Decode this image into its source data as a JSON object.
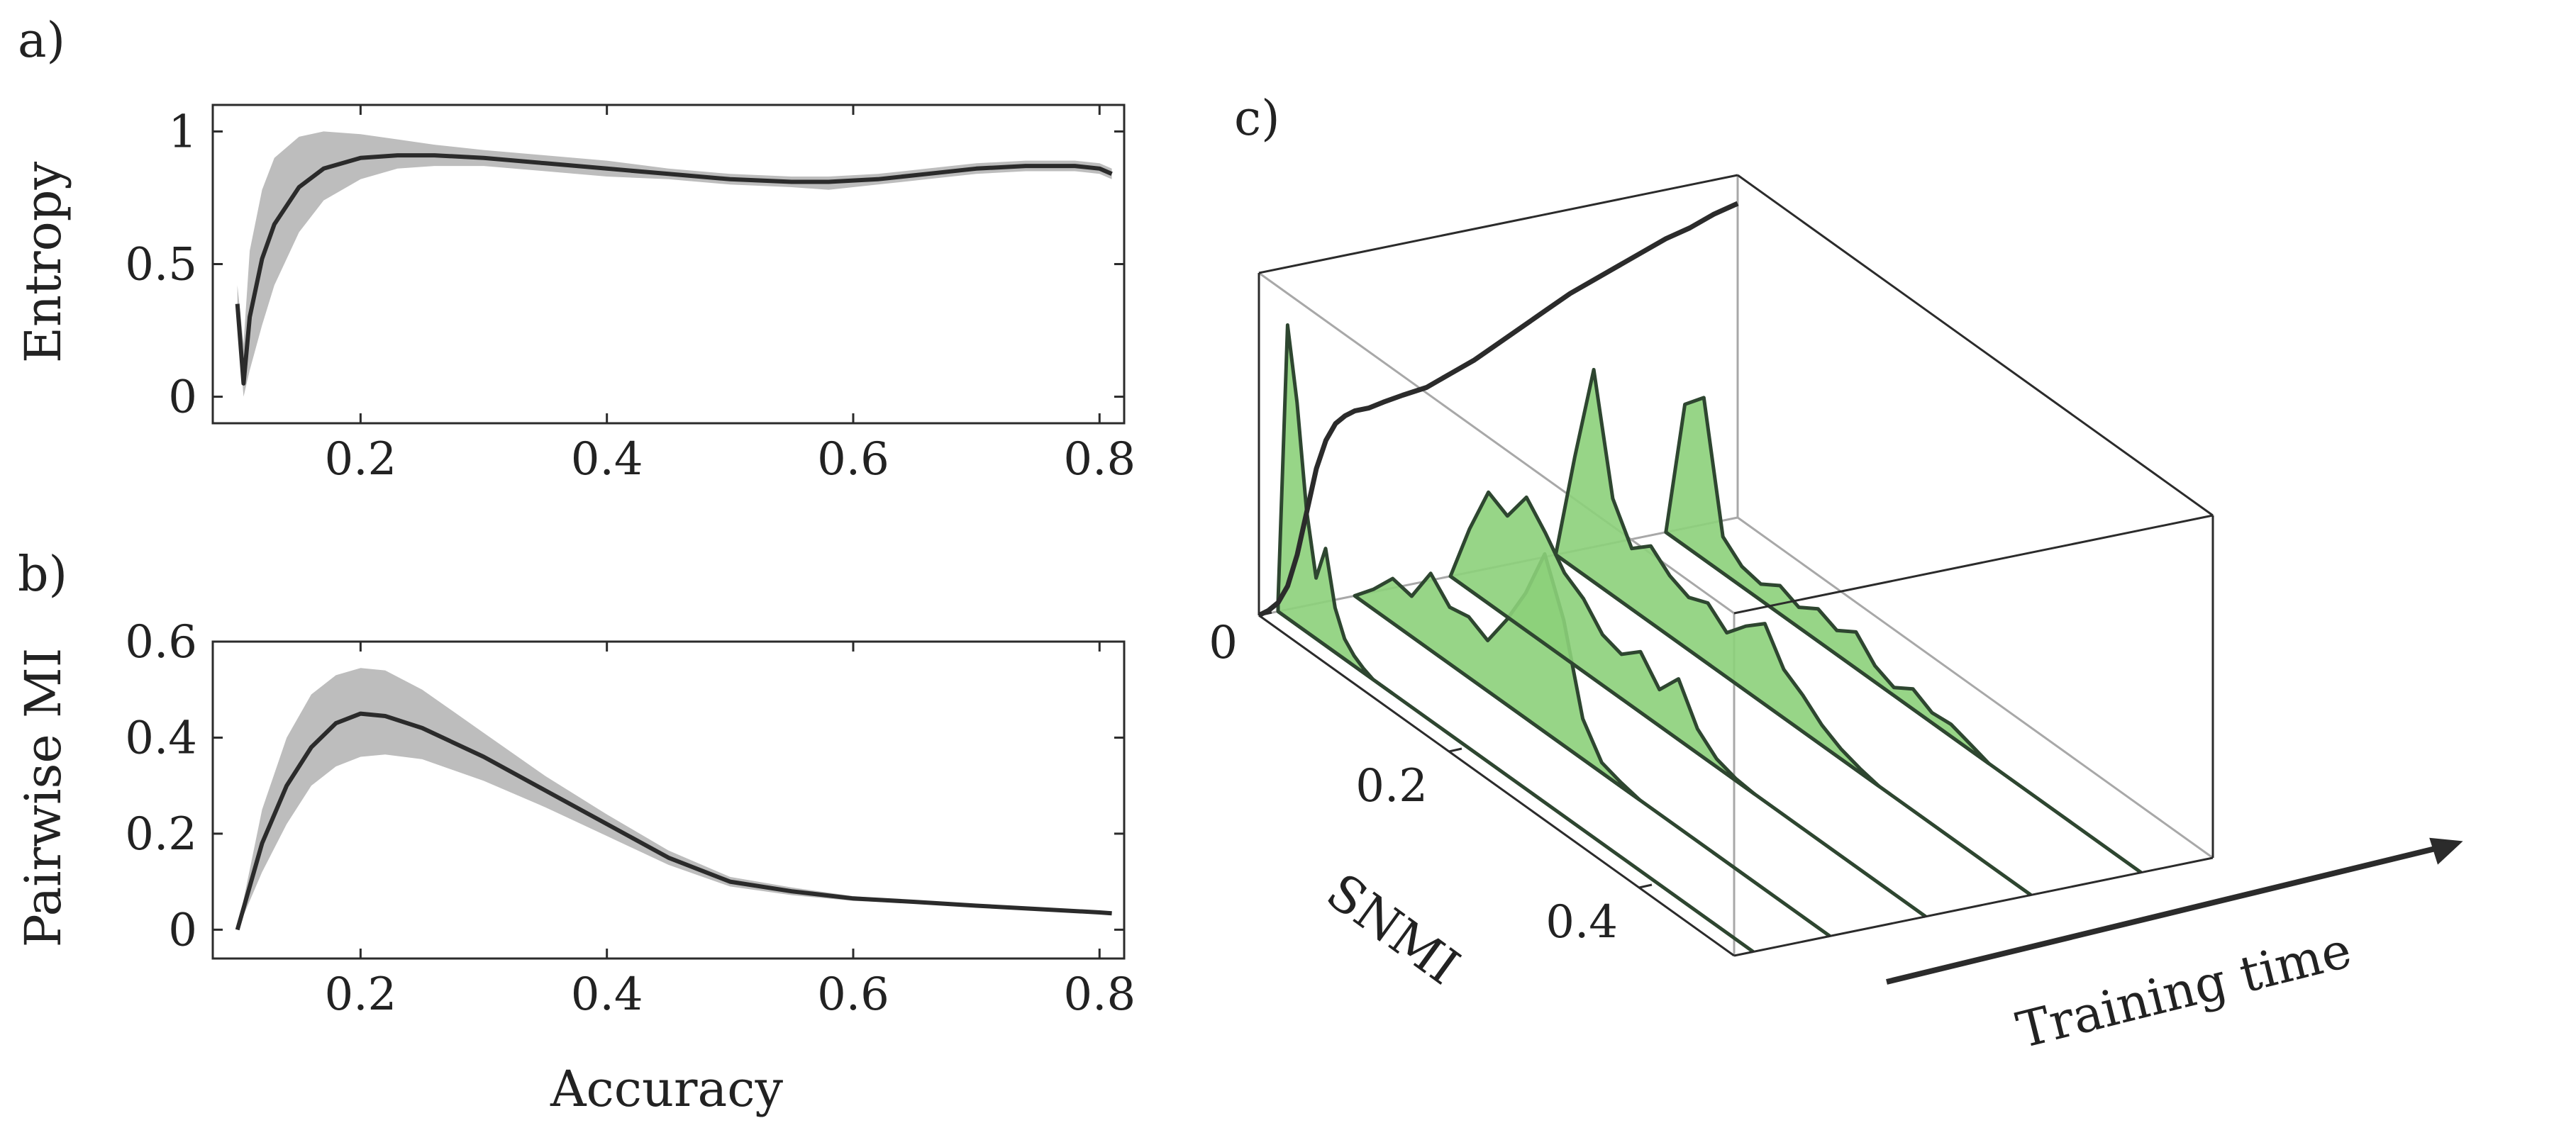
{
  "colors": {
    "line": "#2b2b2b",
    "band": "#bdbdbd",
    "fill": "#8cd07a",
    "fill_edge": "#2e4630",
    "axis": "#2b2b2b",
    "grid3d": "#a8a8a8"
  },
  "chart_data": [
    {
      "panel": "a)",
      "type": "line",
      "title": "",
      "xlabel": "",
      "ylabel": "Entropy",
      "xlim": [
        0.08,
        0.82
      ],
      "ylim": [
        -0.1,
        1.1
      ],
      "xticks": [
        "0.2",
        "0.4",
        "0.6",
        "0.8"
      ],
      "yticks": [
        "0",
        "0.5",
        "1"
      ],
      "grid": false,
      "series": [
        {
          "x": [
            0.1,
            0.105,
            0.11,
            0.12,
            0.13,
            0.15,
            0.17,
            0.2,
            0.23,
            0.26,
            0.3,
            0.35,
            0.4,
            0.45,
            0.5,
            0.55,
            0.58,
            0.62,
            0.66,
            0.7,
            0.74,
            0.78,
            0.8,
            0.81
          ],
          "y": [
            0.35,
            0.05,
            0.3,
            0.52,
            0.65,
            0.79,
            0.86,
            0.9,
            0.91,
            0.91,
            0.9,
            0.88,
            0.86,
            0.84,
            0.82,
            0.81,
            0.81,
            0.82,
            0.84,
            0.86,
            0.87,
            0.87,
            0.86,
            0.84
          ],
          "y_upper": [
            0.42,
            0.2,
            0.55,
            0.78,
            0.9,
            0.98,
            1.0,
            0.99,
            0.97,
            0.95,
            0.93,
            0.91,
            0.89,
            0.86,
            0.84,
            0.83,
            0.83,
            0.84,
            0.86,
            0.88,
            0.89,
            0.89,
            0.88,
            0.86
          ],
          "y_lower": [
            0.28,
            0.0,
            0.1,
            0.27,
            0.42,
            0.62,
            0.74,
            0.82,
            0.86,
            0.87,
            0.87,
            0.85,
            0.83,
            0.82,
            0.8,
            0.79,
            0.78,
            0.8,
            0.82,
            0.84,
            0.85,
            0.85,
            0.84,
            0.82
          ]
        }
      ]
    },
    {
      "panel": "b)",
      "type": "line",
      "title": "",
      "xlabel": "Accuracy",
      "ylabel": "Pairwise MI",
      "xlim": [
        0.08,
        0.82
      ],
      "ylim": [
        -0.06,
        0.6
      ],
      "xticks": [
        "0.2",
        "0.4",
        "0.6",
        "0.8"
      ],
      "yticks": [
        "0",
        "0.2",
        "0.4",
        "0.6"
      ],
      "grid": false,
      "series": [
        {
          "x": [
            0.1,
            0.12,
            0.14,
            0.16,
            0.18,
            0.2,
            0.22,
            0.25,
            0.3,
            0.35,
            0.4,
            0.45,
            0.5,
            0.55,
            0.6,
            0.65,
            0.7,
            0.75,
            0.8,
            0.81
          ],
          "y": [
            0.0,
            0.18,
            0.3,
            0.38,
            0.43,
            0.45,
            0.445,
            0.42,
            0.36,
            0.29,
            0.22,
            0.15,
            0.1,
            0.08,
            0.065,
            0.058,
            0.05,
            0.043,
            0.036,
            0.034
          ],
          "y_upper": [
            0.0,
            0.25,
            0.4,
            0.49,
            0.53,
            0.545,
            0.54,
            0.5,
            0.41,
            0.32,
            0.24,
            0.165,
            0.11,
            0.088,
            0.07,
            0.06,
            0.052,
            0.045,
            0.037,
            0.035
          ],
          "y_lower": [
            0.0,
            0.12,
            0.22,
            0.3,
            0.34,
            0.36,
            0.365,
            0.355,
            0.31,
            0.255,
            0.195,
            0.135,
            0.09,
            0.072,
            0.06,
            0.055,
            0.048,
            0.041,
            0.035,
            0.033
          ]
        }
      ]
    },
    {
      "panel": "c)",
      "type": "area",
      "title": "",
      "depth_label": "SNMI",
      "time_label": "Training time",
      "depth_ticks": [
        "0",
        "0.2",
        "0.4"
      ],
      "depth_lim": [
        0,
        0.5
      ],
      "grid": false,
      "trend_series": {
        "depth": 0.0,
        "t": [
          0.0,
          0.02,
          0.04,
          0.06,
          0.08,
          0.1,
          0.12,
          0.14,
          0.16,
          0.18,
          0.2,
          0.23,
          0.26,
          0.3,
          0.35,
          0.4,
          0.45,
          0.5,
          0.55,
          0.6,
          0.65,
          0.7,
          0.75,
          0.8,
          0.85,
          0.9,
          0.95,
          1.0
        ],
        "y": [
          0.0,
          0.01,
          0.03,
          0.08,
          0.18,
          0.32,
          0.46,
          0.55,
          0.6,
          0.62,
          0.63,
          0.63,
          0.64,
          0.65,
          0.66,
          0.69,
          0.72,
          0.76,
          0.8,
          0.84,
          0.88,
          0.91,
          0.94,
          0.97,
          1.0,
          1.02,
          1.05,
          1.07
        ]
      },
      "distributions": [
        {
          "t": 0.04,
          "depth": [
            0.0,
            0.01,
            0.02,
            0.03,
            0.04,
            0.05,
            0.06,
            0.07,
            0.08,
            0.09,
            0.1,
            0.11,
            0.12
          ],
          "density": [
            0.05,
            1.45,
            1.1,
            0.6,
            0.3,
            0.48,
            0.22,
            0.1,
            0.05,
            0.02,
            0.0,
            0.0,
            0.0
          ]
        },
        {
          "t": 0.2,
          "depth": [
            0.0,
            0.02,
            0.04,
            0.06,
            0.08,
            0.1,
            0.12,
            0.14,
            0.16,
            0.18,
            0.2,
            0.22,
            0.24,
            0.26,
            0.28,
            0.3
          ],
          "density": [
            0.0,
            0.1,
            0.22,
            0.2,
            0.38,
            0.28,
            0.3,
            0.25,
            0.42,
            0.62,
            0.88,
            0.62,
            0.2,
            0.05,
            0.02,
            0.0
          ]
        },
        {
          "t": 0.4,
          "depth": [
            0.0,
            0.02,
            0.04,
            0.06,
            0.08,
            0.1,
            0.12,
            0.14,
            0.16,
            0.18,
            0.2,
            0.22,
            0.24,
            0.26,
            0.28,
            0.3,
            0.32
          ],
          "density": [
            0.0,
            0.3,
            0.55,
            0.5,
            0.66,
            0.55,
            0.42,
            0.36,
            0.25,
            0.22,
            0.3,
            0.18,
            0.3,
            0.12,
            0.04,
            0.01,
            0.0
          ]
        },
        {
          "t": 0.62,
          "depth": [
            0.0,
            0.02,
            0.04,
            0.06,
            0.08,
            0.1,
            0.12,
            0.14,
            0.16,
            0.18,
            0.2,
            0.22,
            0.24,
            0.26,
            0.28,
            0.3,
            0.32,
            0.34
          ],
          "density": [
            0.0,
            0.55,
            1.05,
            0.48,
            0.3,
            0.38,
            0.3,
            0.26,
            0.3,
            0.22,
            0.32,
            0.4,
            0.24,
            0.18,
            0.1,
            0.05,
            0.02,
            0.0
          ]
        },
        {
          "t": 0.85,
          "depth": [
            0.0,
            0.02,
            0.04,
            0.06,
            0.08,
            0.1,
            0.12,
            0.14,
            0.16,
            0.18,
            0.2,
            0.22,
            0.24,
            0.26,
            0.28,
            0.3,
            0.32,
            0.34
          ],
          "density": [
            0.0,
            0.7,
            0.8,
            0.18,
            0.1,
            0.08,
            0.14,
            0.1,
            0.16,
            0.12,
            0.18,
            0.08,
            0.04,
            0.1,
            0.05,
            0.06,
            0.03,
            0.0
          ]
        }
      ]
    }
  ]
}
